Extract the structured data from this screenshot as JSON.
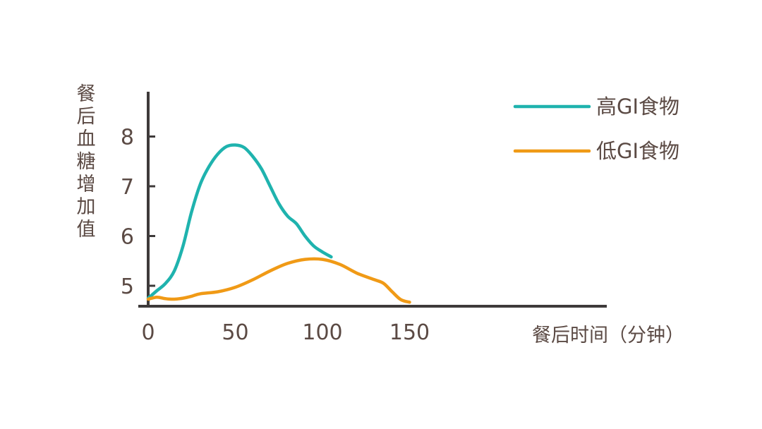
{
  "chart_data": {
    "type": "line",
    "title": "",
    "xlabel": "餐后时间（分钟）",
    "ylabel": "餐后血糖增加值",
    "xlim": [
      0,
      250
    ],
    "ylim": [
      4.6,
      8.9
    ],
    "x_ticks": [
      "0",
      "50",
      "100",
      "150"
    ],
    "x_tick_values": [
      0,
      50,
      100,
      150
    ],
    "y_ticks": [
      "5",
      "6",
      "7",
      "8"
    ],
    "y_tick_values": [
      5,
      6,
      7,
      8
    ],
    "grid": false,
    "legend_position": "top-right",
    "series": [
      {
        "name": "高GI食物",
        "color": "#1fb3ae",
        "x": [
          0,
          5,
          10,
          15,
          20,
          25,
          30,
          35,
          40,
          45,
          50,
          55,
          60,
          65,
          70,
          75,
          80,
          85,
          90,
          95,
          100,
          105
        ],
        "y": [
          4.75,
          4.9,
          5.05,
          5.3,
          5.8,
          6.5,
          7.05,
          7.4,
          7.65,
          7.8,
          7.83,
          7.78,
          7.6,
          7.35,
          7.0,
          6.65,
          6.4,
          6.25,
          6.0,
          5.8,
          5.68,
          5.58
        ]
      },
      {
        "name": "低GI食物",
        "color": "#f09a16",
        "x": [
          0,
          5,
          10,
          15,
          20,
          25,
          30,
          40,
          50,
          60,
          70,
          80,
          90,
          100,
          110,
          120,
          130,
          135,
          140,
          145,
          150
        ],
        "y": [
          4.73,
          4.77,
          4.74,
          4.73,
          4.75,
          4.79,
          4.84,
          4.88,
          4.97,
          5.12,
          5.3,
          5.45,
          5.53,
          5.53,
          5.43,
          5.25,
          5.12,
          5.05,
          4.88,
          4.72,
          4.67
        ]
      }
    ]
  }
}
